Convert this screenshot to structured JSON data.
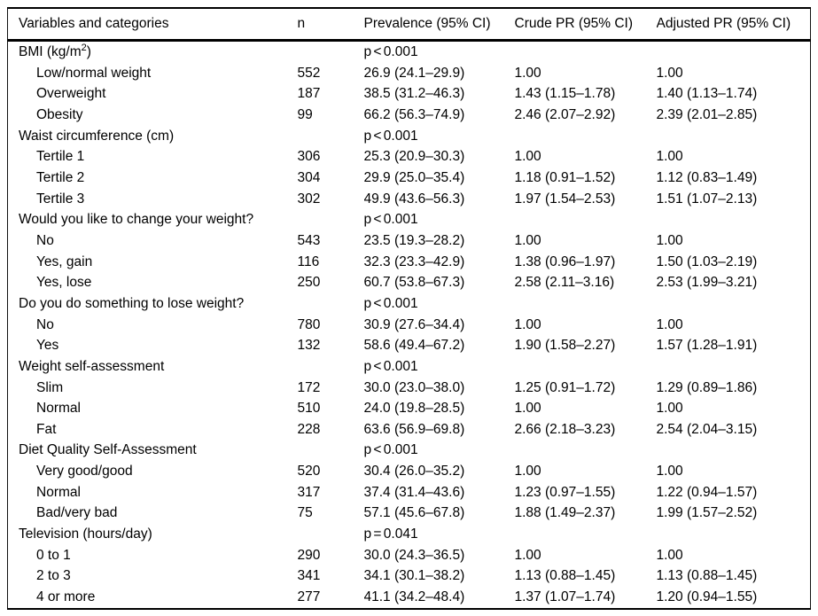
{
  "table": {
    "columns": [
      "Variables and categories",
      "n",
      "Prevalence (95% CI)",
      "Crude PR (95% CI)",
      "Adjusted PR (95% CI)"
    ],
    "groups": [
      {
        "label": "BMI (kg/m²)",
        "p": "p < 0.001",
        "rows": [
          {
            "category": "Low/normal weight",
            "n": "552",
            "prevalence": "26.9 (24.1–29.9)",
            "crude": "1.00",
            "adjusted": "1.00"
          },
          {
            "category": "Overweight",
            "n": "187",
            "prevalence": "38.5 (31.2–46.3)",
            "crude": "1.43 (1.15–1.78)",
            "adjusted": "1.40 (1.13–1.74)"
          },
          {
            "category": "Obesity",
            "n": "99",
            "prevalence": "66.2 (56.3–74.9)",
            "crude": "2.46 (2.07–2.92)",
            "adjusted": "2.39 (2.01–2.85)"
          }
        ]
      },
      {
        "label": "Waist circumference (cm)",
        "p": "p < 0.001",
        "rows": [
          {
            "category": "Tertile 1",
            "n": "306",
            "prevalence": "25.3 (20.9–30.3)",
            "crude": "1.00",
            "adjusted": "1.00"
          },
          {
            "category": "Tertile 2",
            "n": "304",
            "prevalence": "29.9 (25.0–35.4)",
            "crude": "1.18 (0.91–1.52)",
            "adjusted": "1.12 (0.83–1.49)"
          },
          {
            "category": "Tertile 3",
            "n": "302",
            "prevalence": "49.9 (43.6–56.3)",
            "crude": "1.97 (1.54–2.53)",
            "adjusted": "1.51 (1.07–2.13)"
          }
        ]
      },
      {
        "label": "Would you like to change your weight?",
        "p": "p < 0.001",
        "rows": [
          {
            "category": "No",
            "n": "543",
            "prevalence": "23.5 (19.3–28.2)",
            "crude": "1.00",
            "adjusted": "1.00"
          },
          {
            "category": "Yes, gain",
            "n": "116",
            "prevalence": "32.3 (23.3–42.9)",
            "crude": "1.38 (0.96–1.97)",
            "adjusted": "1.50 (1.03–2.19)"
          },
          {
            "category": "Yes, lose",
            "n": "250",
            "prevalence": "60.7 (53.8–67.3)",
            "crude": "2.58 (2.11–3.16)",
            "adjusted": "2.53 (1.99–3.21)"
          }
        ]
      },
      {
        "label": "Do you do something to lose weight?",
        "p": "p < 0.001",
        "rows": [
          {
            "category": "No",
            "n": "780",
            "prevalence": "30.9 (27.6–34.4)",
            "crude": "1.00",
            "adjusted": "1.00"
          },
          {
            "category": "Yes",
            "n": "132",
            "prevalence": "58.6 (49.4–67.2)",
            "crude": "1.90 (1.58–2.27)",
            "adjusted": "1.57 (1.28–1.91)"
          }
        ]
      },
      {
        "label": "Weight self-assessment",
        "p": "p < 0.001",
        "rows": [
          {
            "category": "Slim",
            "n": "172",
            "prevalence": "30.0 (23.0–38.0)",
            "crude": "1.25 (0.91–1.72)",
            "adjusted": "1.29 (0.89–1.86)"
          },
          {
            "category": "Normal",
            "n": "510",
            "prevalence": "24.0 (19.8–28.5)",
            "crude": "1.00",
            "adjusted": "1.00"
          },
          {
            "category": "Fat",
            "n": "228",
            "prevalence": "63.6 (56.9–69.8)",
            "crude": "2.66 (2.18–3.23)",
            "adjusted": "2.54 (2.04–3.15)"
          }
        ]
      },
      {
        "label": "Diet Quality Self-Assessment",
        "p": "p < 0.001",
        "rows": [
          {
            "category": "Very good/good",
            "n": "520",
            "prevalence": "30.4 (26.0–35.2)",
            "crude": "1.00",
            "adjusted": "1.00"
          },
          {
            "category": "Normal",
            "n": "317",
            "prevalence": "37.4 (31.4–43.6)",
            "crude": "1.23 (0.97–1.55)",
            "adjusted": "1.22 (0.94–1.57)"
          },
          {
            "category": "Bad/very bad",
            "n": "75",
            "prevalence": "57.1 (45.6–67.8)",
            "crude": "1.88 (1.49–2.37)",
            "adjusted": "1.99 (1.57–2.52)"
          }
        ]
      },
      {
        "label": "Television (hours/day)",
        "p": "p = 0.041",
        "rows": [
          {
            "category": "0 to 1",
            "n": "290",
            "prevalence": "30.0 (24.3–36.5)",
            "crude": "1.00",
            "adjusted": "1.00"
          },
          {
            "category": "2 to 3",
            "n": "341",
            "prevalence": "34.1 (30.1–38.2)",
            "crude": "1.13 (0.88–1.45)",
            "adjusted": "1.13 (0.88–1.45)"
          },
          {
            "category": "4 or more",
            "n": "277",
            "prevalence": "41.1 (34.2–48.4)",
            "crude": "1.37 (1.07–1.74)",
            "adjusted": "1.20 (0.94–1.55)"
          }
        ]
      }
    ]
  }
}
